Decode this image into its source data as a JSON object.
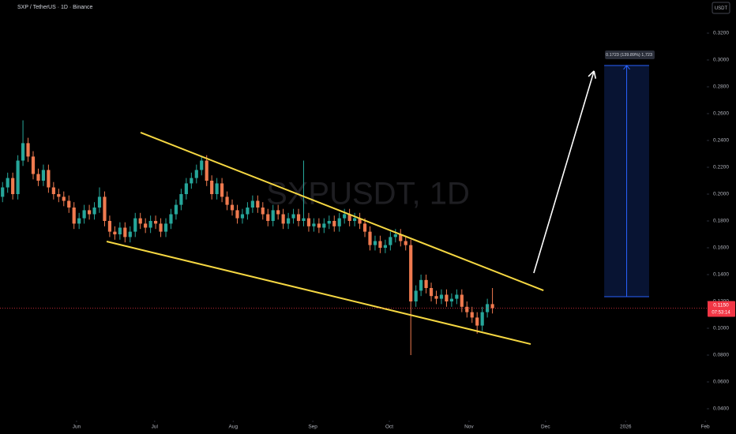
{
  "chart_data": {
    "type": "candlestick",
    "title": "SXP / TetherUS · 1D · Binance",
    "watermark": "SXPUSDT, 1D",
    "currency": "USDT",
    "categories": [
      null,
      null,
      null,
      null,
      null,
      null,
      null,
      null,
      null,
      null,
      null,
      null,
      null,
      null,
      null,
      null,
      null,
      null,
      null,
      null,
      null,
      null,
      null,
      null,
      null,
      null,
      null,
      null,
      null,
      null,
      null,
      null,
      null,
      null,
      null,
      null,
      null,
      null,
      null,
      null,
      null,
      null,
      null,
      null,
      null,
      null,
      null,
      null,
      null,
      null,
      null,
      null,
      null,
      null,
      null,
      null,
      null,
      null,
      null,
      null,
      null,
      null,
      null,
      null,
      null,
      null,
      null,
      null,
      null,
      null,
      null,
      null,
      null,
      null,
      null,
      null,
      null,
      null,
      null,
      null,
      null,
      null,
      null,
      null,
      null,
      null,
      null,
      null,
      null,
      null,
      null,
      null,
      null,
      null,
      null,
      null,
      null
    ],
    "open": [
      0.198,
      0.205,
      0.212,
      0.2,
      0.225,
      0.238,
      0.228,
      0.215,
      0.21,
      0.218,
      0.205,
      0.2,
      0.198,
      0.195,
      0.19,
      0.178,
      0.182,
      0.188,
      0.185,
      0.19,
      0.198,
      0.18,
      0.172,
      0.17,
      0.175,
      0.168,
      0.172,
      0.182,
      0.178,
      0.175,
      0.18,
      0.178,
      0.172,
      0.178,
      0.185,
      0.192,
      0.2,
      0.208,
      0.212,
      0.218,
      0.225,
      0.21,
      0.2,
      0.208,
      0.198,
      0.192,
      0.188,
      0.182,
      0.185,
      0.19,
      0.195,
      0.19,
      0.185,
      0.18,
      0.188,
      0.185,
      0.178,
      0.182,
      0.185,
      0.18,
      0.182,
      0.176,
      0.178,
      0.175,
      0.178,
      0.18,
      0.176,
      0.182,
      0.185,
      0.18,
      0.182,
      0.178,
      0.172,
      0.162,
      0.165,
      0.16,
      0.162,
      0.168,
      0.17,
      0.165,
      0.162,
      0.12,
      0.128,
      0.136,
      0.13,
      0.124,
      0.122,
      0.125,
      0.12,
      0.122,
      0.125,
      0.116,
      0.112,
      0.108,
      0.102,
      0.112,
      0.118
    ],
    "high": [
      0.209,
      0.216,
      0.216,
      0.229,
      0.255,
      0.242,
      0.232,
      0.219,
      0.222,
      0.222,
      0.209,
      0.204,
      0.202,
      0.199,
      0.194,
      0.186,
      0.192,
      0.192,
      0.194,
      0.205,
      0.202,
      0.184,
      0.176,
      0.179,
      0.179,
      0.176,
      0.186,
      0.186,
      0.182,
      0.184,
      0.184,
      0.182,
      0.182,
      0.189,
      0.196,
      0.204,
      0.212,
      0.216,
      0.222,
      0.228,
      0.229,
      0.214,
      0.212,
      0.212,
      0.202,
      0.196,
      0.192,
      0.189,
      0.194,
      0.199,
      0.199,
      0.194,
      0.189,
      0.192,
      0.192,
      0.189,
      0.186,
      0.189,
      0.189,
      0.225,
      0.186,
      0.182,
      0.182,
      0.182,
      0.184,
      0.184,
      0.186,
      0.189,
      0.189,
      0.186,
      0.186,
      0.182,
      0.176,
      0.169,
      0.169,
      0.166,
      0.172,
      0.174,
      0.174,
      0.169,
      0.166,
      0.132,
      0.14,
      0.14,
      0.134,
      0.128,
      0.129,
      0.129,
      0.126,
      0.129,
      0.129,
      0.12,
      0.116,
      0.112,
      0.116,
      0.122,
      0.13
    ],
    "low": [
      0.194,
      0.201,
      0.196,
      0.196,
      0.221,
      0.224,
      0.211,
      0.206,
      0.206,
      0.201,
      0.196,
      0.194,
      0.191,
      0.186,
      0.174,
      0.174,
      0.178,
      0.181,
      0.181,
      0.186,
      0.176,
      0.168,
      0.166,
      0.166,
      0.164,
      0.164,
      0.168,
      0.174,
      0.171,
      0.171,
      0.174,
      0.168,
      0.168,
      0.174,
      0.181,
      0.188,
      0.196,
      0.204,
      0.208,
      0.214,
      0.206,
      0.196,
      0.196,
      0.194,
      0.188,
      0.184,
      0.178,
      0.178,
      0.181,
      0.186,
      0.186,
      0.181,
      0.176,
      0.176,
      0.181,
      0.174,
      0.174,
      0.178,
      0.176,
      0.176,
      0.172,
      0.172,
      0.171,
      0.171,
      0.174,
      0.172,
      0.172,
      0.178,
      0.176,
      0.176,
      0.174,
      0.168,
      0.158,
      0.158,
      0.156,
      0.156,
      0.158,
      0.164,
      0.161,
      0.158,
      0.08,
      0.116,
      0.124,
      0.126,
      0.12,
      0.118,
      0.118,
      0.116,
      0.116,
      0.118,
      0.112,
      0.108,
      0.104,
      0.096,
      0.098,
      0.108,
      0.111
    ],
    "close": [
      0.205,
      0.212,
      0.2,
      0.225,
      0.238,
      0.228,
      0.215,
      0.21,
      0.218,
      0.205,
      0.2,
      0.198,
      0.195,
      0.19,
      0.178,
      0.182,
      0.188,
      0.185,
      0.19,
      0.198,
      0.18,
      0.172,
      0.17,
      0.175,
      0.168,
      0.172,
      0.182,
      0.178,
      0.175,
      0.18,
      0.178,
      0.172,
      0.178,
      0.185,
      0.192,
      0.2,
      0.208,
      0.212,
      0.218,
      0.225,
      0.21,
      0.2,
      0.208,
      0.198,
      0.192,
      0.188,
      0.182,
      0.185,
      0.19,
      0.195,
      0.19,
      0.185,
      0.18,
      0.188,
      0.185,
      0.178,
      0.182,
      0.185,
      0.18,
      0.182,
      0.176,
      0.178,
      0.175,
      0.178,
      0.18,
      0.176,
      0.182,
      0.185,
      0.18,
      0.182,
      0.178,
      0.172,
      0.162,
      0.165,
      0.16,
      0.162,
      0.168,
      0.17,
      0.165,
      0.162,
      0.12,
      0.128,
      0.136,
      0.13,
      0.124,
      0.122,
      0.125,
      0.12,
      0.122,
      0.125,
      0.116,
      0.112,
      0.108,
      0.102,
      0.112,
      0.118,
      0.115
    ],
    "up_color": "#26a69a",
    "down_color": "#ef7a4f",
    "xlim": [
      -0.5,
      138
    ],
    "xticks": [
      {
        "value": 14.5,
        "label": "Jun"
      },
      {
        "value": 29.8,
        "label": "Jul"
      },
      {
        "value": 45.2,
        "label": "Aug"
      },
      {
        "value": 60.8,
        "label": "Sep"
      },
      {
        "value": 75.8,
        "label": "Oct"
      },
      {
        "value": 91.4,
        "label": "Nov"
      },
      {
        "value": 106.4,
        "label": "Dec"
      },
      {
        "value": 122.1,
        "label": "2026"
      },
      {
        "value": 137.7,
        "label": "Feb"
      }
    ],
    "ylim": [
      0.03,
      0.33
    ],
    "yticks": [
      {
        "value": 0.04,
        "label": "0.0400"
      },
      {
        "value": 0.06,
        "label": "0.0600"
      },
      {
        "value": 0.08,
        "label": "0.0800"
      },
      {
        "value": 0.1,
        "label": "0.1000"
      },
      {
        "value": 0.12,
        "label": "0.1200"
      },
      {
        "value": 0.14,
        "label": "0.1400"
      },
      {
        "value": 0.16,
        "label": "0.1600"
      },
      {
        "value": 0.18,
        "label": "0.1800"
      },
      {
        "value": 0.2,
        "label": "0.2000"
      },
      {
        "value": 0.22,
        "label": "0.2200"
      },
      {
        "value": 0.24,
        "label": "0.2400"
      },
      {
        "value": 0.26,
        "label": "0.2600"
      },
      {
        "value": 0.28,
        "label": "0.2800"
      },
      {
        "value": 0.3,
        "label": "0.3000"
      },
      {
        "value": 0.32,
        "label": "0.3200"
      }
    ],
    "grid": false,
    "last_price": {
      "value": 0.115,
      "label": "0.1150",
      "countdown": "07:53:14",
      "color": "#f23645"
    },
    "trendlines": [
      {
        "x": [
          27.05,
          106.0
        ],
        "y": [
          0.2459,
          0.1282
        ],
        "color": "#f5d742"
      },
      {
        "x": [
          20.4,
          103.5
        ],
        "y": [
          0.1647,
          0.0882
        ],
        "color": "#f5d742"
      }
    ],
    "arrow": {
      "x": [
        104.1,
        115.9
      ],
      "y": [
        0.1412,
        0.2918
      ],
      "color": "#ffffff"
    },
    "target_box": {
      "x": [
        117.9,
        126.7
      ],
      "y": [
        0.1235,
        0.2959
      ],
      "label": "0.1723 (139.89%) 1,723",
      "color": "#2962ff"
    }
  }
}
